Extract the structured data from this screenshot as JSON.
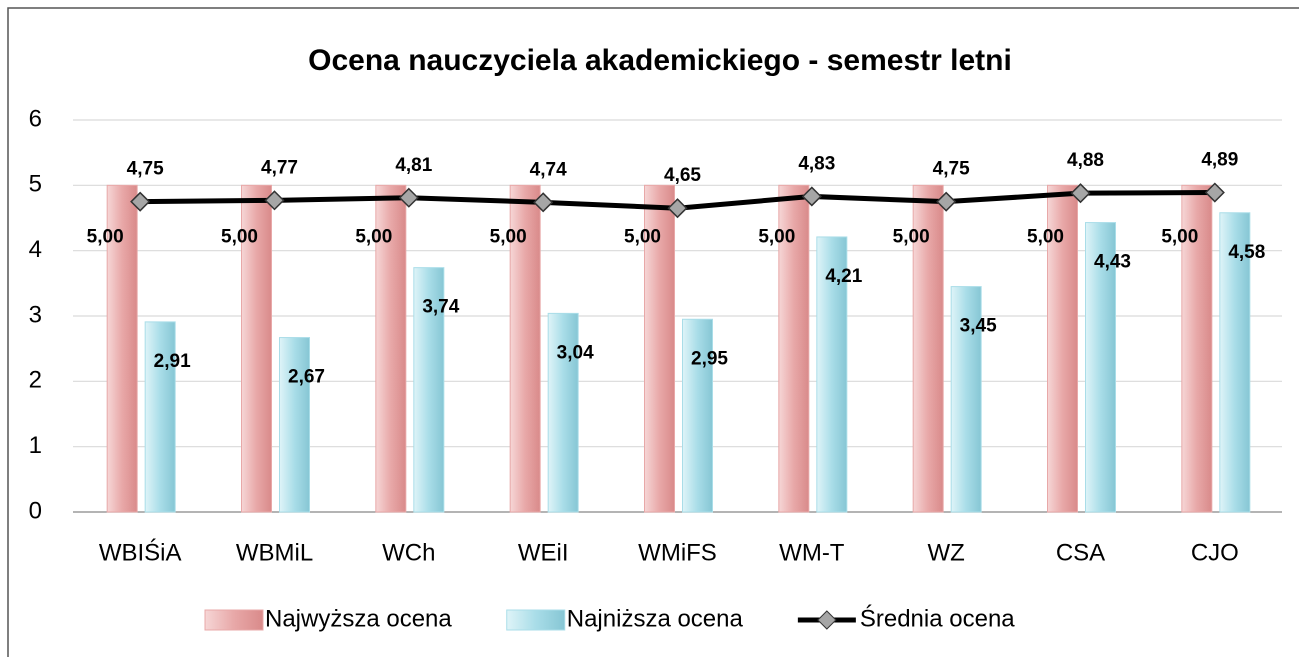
{
  "chart_data": {
    "type": "bar",
    "title": "Ocena nauczyciela akademickiego - semestr letni",
    "categories": [
      "WBIŚiA",
      "WBMiL",
      "WCh",
      "WEiI",
      "WMiFS",
      "WM-T",
      "WZ",
      "CSA",
      "CJO"
    ],
    "series": [
      {
        "name": "Najwyższa ocena",
        "type": "bar",
        "color": "#e8a8a8",
        "values": [
          5,
          5,
          5,
          5,
          5,
          5,
          5,
          5,
          5
        ],
        "value_labels": [
          "5,00",
          "5,00",
          "5,00",
          "5,00",
          "5,00",
          "5,00",
          "5,00",
          "5,00",
          "5,00"
        ]
      },
      {
        "name": "Najniższa ocena",
        "type": "bar",
        "color": "#a9dde8",
        "values": [
          2.91,
          2.67,
          3.74,
          3.04,
          2.95,
          4.21,
          3.45,
          4.43,
          4.58
        ],
        "value_labels": [
          "2,91",
          "2,67",
          "3,74",
          "3,04",
          "2,95",
          "4,21",
          "3,45",
          "4,43",
          "4,58"
        ]
      },
      {
        "name": "Średnia ocena",
        "type": "line",
        "color": "#000000",
        "values": [
          4.75,
          4.77,
          4.81,
          4.74,
          4.65,
          4.83,
          4.75,
          4.88,
          4.89
        ],
        "value_labels": [
          "4,75",
          "4,77",
          "4,81",
          "4,74",
          "4,65",
          "4,83",
          "4,75",
          "4,88",
          "4,89"
        ]
      }
    ],
    "ylim": [
      0,
      6
    ],
    "yticks": [
      0,
      1,
      2,
      3,
      4,
      5,
      6
    ],
    "grid": true,
    "legend": "bottom"
  }
}
